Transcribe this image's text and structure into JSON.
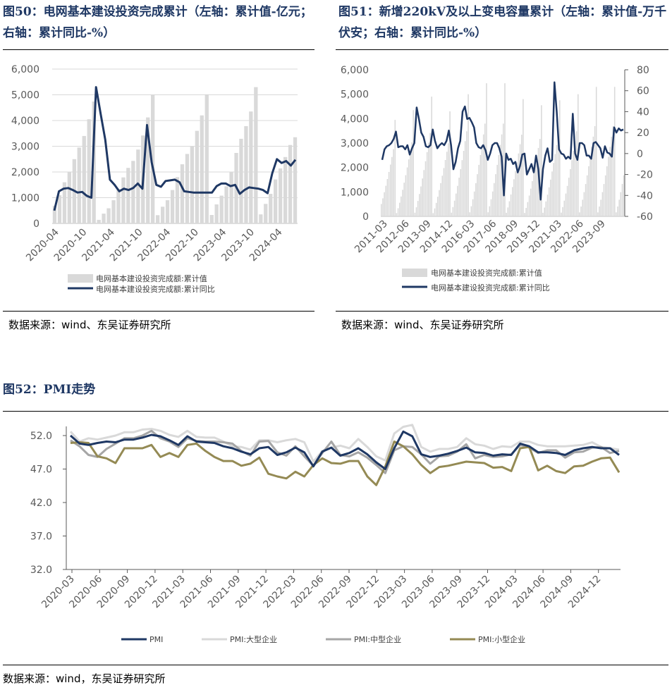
{
  "figures": {
    "fig50": {
      "title": "图50：电网基本建设投资完成累计（左轴：累计值-亿元；右轴：累计同比-%）",
      "source": "数据来源：wind、东吴证券研究所"
    },
    "fig51": {
      "title": "图51：新增220kV及以上变电容量累计（左轴：累计值-万千伏安；右轴：累计同比-%）",
      "source": "数据来源：wind、东吴证券研究所"
    },
    "fig52": {
      "title": "图52：PMI走势",
      "source": "数据来源：wind，东吴证券研究所"
    }
  },
  "colors": {
    "navy": "#1f3864",
    "bar_gray": "#d9d9d9",
    "light_gray": "#d9d9d9",
    "mid_gray": "#a6a6a6",
    "olive": "#948a54"
  },
  "chart_data": [
    {
      "id": "fig50",
      "type": "bar+line",
      "x_tick_labels": [
        "2020-04",
        "2020-10",
        "2021-04",
        "2021-10",
        "2022-04",
        "2022-10",
        "2023-04",
        "2023-10",
        "2024-04"
      ],
      "y_left": {
        "ticks": [
          "0",
          "1,000",
          "2,000",
          "3,000",
          "4,000",
          "5,000",
          "6,000"
        ],
        "range": [
          0,
          6000
        ]
      },
      "y_right": {
        "range": [
          -40,
          200
        ],
        "ticks_shown": false
      },
      "grid": true,
      "legend_position": "bottom",
      "series": [
        {
          "name": "电网基本建设投资完成额:累计值",
          "kind": "bar",
          "values": [
            690,
            1100,
            1600,
            2000,
            2500,
            2950,
            3400,
            4050,
            4740,
            140,
            380,
            590,
            900,
            1330,
            1790,
            2160,
            2430,
            2870,
            3420,
            4120,
            4990,
            320,
            650,
            900,
            1300,
            1800,
            2300,
            2700,
            3000,
            3600,
            4200,
            5020,
            330,
            740,
            1080,
            1440,
            2000,
            2740,
            3290,
            3780,
            4350,
            5300,
            350,
            760,
            1150,
            1710,
            2140,
            2580,
            3050,
            3350
          ]
        },
        {
          "name": "电网基本建设投资完成额:累计同比",
          "kind": "line",
          "values": [
            -20,
            10,
            14,
            15,
            12,
            8,
            9,
            3,
            0,
            172,
            130,
            90,
            28,
            20,
            10,
            14,
            12,
            15,
            22,
            14,
            113,
            55,
            20,
            17,
            26,
            27,
            28,
            24,
            10,
            9,
            8,
            8,
            8,
            8,
            8,
            18,
            22,
            22,
            18,
            20,
            6,
            12,
            16,
            15,
            14,
            12,
            7,
            38,
            60,
            54,
            57,
            50,
            59
          ]
        }
      ]
    },
    {
      "id": "fig51",
      "type": "bar+line",
      "x_tick_labels": [
        "2011-03",
        "2012-06",
        "2013-09",
        "2014-12",
        "2016-03",
        "2017-06",
        "2018-09",
        "2019-12",
        "2021-03",
        "2022-06",
        "2023-09"
      ],
      "y_left": {
        "ticks": [
          "0",
          "1,000",
          "2,000",
          "3,000",
          "4,000",
          "5,000",
          "6,000"
        ],
        "range": [
          0,
          6000
        ]
      },
      "y_right": {
        "ticks": [
          "-60",
          "-40",
          "-20",
          "0",
          "20",
          "40",
          "60",
          "80"
        ],
        "range": [
          -60,
          80
        ]
      },
      "grid": false,
      "legend_position": "bottom",
      "series": [
        {
          "name": "电网基本建设投资完成额:累计值",
          "kind": "bar",
          "n_points": 160,
          "annual_peaks": [
            3950,
            4350,
            4900,
            4300,
            5000,
            5450,
            5450,
            4800,
            4550,
            4750,
            5000,
            5300,
            5300
          ]
        },
        {
          "name": "电网基本建设投资完成额:累计同比",
          "kind": "line",
          "values": [
            -6,
            4,
            7,
            8,
            10,
            14,
            21,
            6,
            7,
            7,
            4,
            8,
            -1,
            5,
            10,
            44,
            33,
            20,
            16,
            7,
            6,
            8,
            23,
            12,
            5,
            8,
            10,
            8,
            12,
            22,
            8,
            -15,
            -8,
            5,
            12,
            40,
            45,
            33,
            34,
            30,
            25,
            10,
            6,
            5,
            8,
            3,
            -6,
            0,
            8,
            10,
            10,
            5,
            -3,
            -40,
            0,
            -6,
            -5,
            -10,
            -8,
            -18,
            -12,
            -1,
            0,
            -20,
            -15,
            -10,
            -18,
            -2,
            -15,
            -44,
            -15,
            -2,
            5,
            -8,
            -6,
            68,
            40,
            4,
            0,
            -1,
            -5,
            -3,
            -5,
            38,
            0,
            -6,
            10,
            10,
            8,
            -2,
            -2,
            -5,
            10,
            11,
            8,
            5,
            -4,
            7,
            1,
            0,
            -3,
            25,
            20,
            24,
            22,
            23
          ]
        }
      ]
    },
    {
      "id": "fig52",
      "type": "line",
      "x_tick_labels": [
        "2020-03",
        "2020-06",
        "2020-09",
        "2020-12",
        "2021-03",
        "2021-06",
        "2021-09",
        "2021-12",
        "2022-03",
        "2022-06",
        "2022-09",
        "2022-12",
        "2023-03",
        "2023-06",
        "2023-09",
        "2023-12",
        "2024-03",
        "2024-06",
        "2024-09",
        "2024-12"
      ],
      "y": {
        "ticks": [
          "32.0",
          "37.0",
          "42.0",
          "47.0",
          "52.0"
        ],
        "range": [
          32,
          54
        ]
      },
      "grid": false,
      "legend_position": "bottom",
      "series": [
        {
          "name": "PMI",
          "values": [
            52.0,
            50.8,
            50.6,
            50.9,
            51.1,
            51.0,
            51.4,
            51.4,
            51.7,
            52.1,
            51.9,
            51.3,
            50.6,
            51.9,
            51.1,
            51.0,
            50.9,
            50.4,
            50.1,
            49.6,
            49.2,
            50.1,
            50.3,
            49.1,
            49.5,
            50.2,
            49.5,
            47.4,
            49.6,
            50.2,
            49.0,
            49.4,
            50.1,
            49.2,
            48.0,
            47.0,
            50.1,
            52.6,
            51.9,
            49.2,
            48.8,
            49.0,
            49.3,
            49.7,
            50.2,
            49.5,
            49.4,
            49.0,
            49.2,
            49.1,
            50.8,
            50.4,
            49.5,
            49.5,
            49.4,
            49.1,
            49.8,
            50.1,
            50.3,
            50.1,
            50.1,
            49.1
          ]
        },
        {
          "name": "PMI:大型企业",
          "values": [
            52.6,
            51.1,
            51.6,
            51.4,
            51.7,
            52.0,
            52.5,
            52.5,
            52.9,
            53.0,
            52.7,
            52.1,
            51.8,
            52.7,
            51.8,
            51.7,
            51.7,
            51.1,
            50.4,
            50.3,
            49.9,
            51.3,
            51.3,
            51.0,
            51.3,
            51.5,
            51.0,
            48.1,
            49.7,
            50.2,
            50.5,
            50.1,
            51.5,
            50.3,
            48.9,
            48.3,
            52.3,
            53.3,
            53.6,
            50.3,
            49.6,
            50.0,
            50.0,
            50.3,
            51.6,
            50.7,
            50.5,
            50.0,
            50.4,
            50.3,
            51.1,
            51.1,
            50.6,
            50.4,
            50.4,
            50.4,
            50.5,
            50.6,
            51.0,
            50.3,
            50.1,
            49.9
          ]
        },
        {
          "name": "PMI:中型企业",
          "values": [
            51.3,
            50.4,
            49.1,
            48.8,
            50.0,
            50.8,
            51.6,
            51.6,
            52.0,
            52.7,
            51.6,
            51.1,
            50.3,
            51.6,
            51.2,
            51.1,
            51.1,
            51.0,
            50.8,
            49.7,
            49.0,
            51.1,
            51.2,
            49.5,
            49.0,
            50.4,
            48.9,
            47.5,
            49.4,
            51.1,
            49.1,
            48.9,
            49.5,
            48.7,
            47.6,
            46.4,
            49.8,
            50.4,
            50.3,
            49.2,
            47.8,
            48.9,
            49.0,
            49.6,
            50.7,
            48.6,
            49.1,
            48.8,
            48.9,
            49.2,
            50.6,
            50.2,
            49.4,
            49.8,
            49.8,
            48.7,
            49.5,
            49.6,
            50.2,
            50.3,
            49.4,
            49.7
          ]
        },
        {
          "name": "PMI:小型企业",
          "values": [
            50.9,
            51.0,
            50.9,
            48.9,
            48.6,
            47.9,
            50.1,
            50.1,
            50.1,
            50.6,
            48.8,
            49.4,
            48.8,
            50.6,
            50.8,
            49.7,
            48.8,
            48.2,
            48.2,
            47.5,
            47.8,
            48.7,
            46.3,
            45.9,
            45.6,
            46.6,
            45.9,
            47.6,
            48.6,
            47.9,
            47.8,
            48.2,
            48.2,
            45.9,
            44.6,
            47.4,
            51.1,
            50.4,
            49.2,
            47.6,
            46.4,
            47.3,
            47.5,
            47.8,
            48.1,
            48.0,
            47.9,
            47.2,
            47.3,
            46.7,
            50.1,
            50.3,
            46.8,
            47.5,
            46.7,
            46.4,
            47.4,
            47.5,
            48.1,
            48.6,
            48.7,
            46.5
          ]
        }
      ]
    }
  ]
}
